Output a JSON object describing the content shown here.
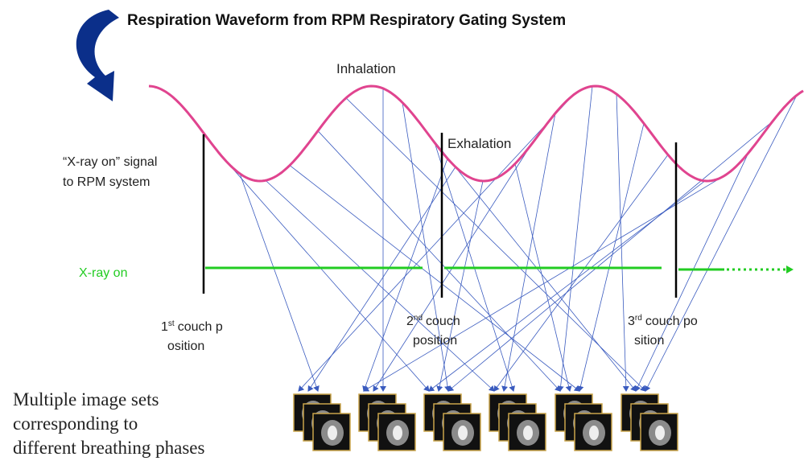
{
  "title": "Respiration Waveform from RPM Respiratory Gating System",
  "labels": {
    "inhalation": "Inhalation",
    "exhalation": "Exhalation",
    "signal": [
      "“X-ray on” signal",
      "to RPM system"
    ],
    "xray_on": "X-ray on",
    "couch_positions": [
      {
        "number": "1",
        "sup": "st",
        "line1": "couch p",
        "line2": "osition"
      },
      {
        "number": "2",
        "sup": "nd",
        "line1": "couch",
        "line2": "position"
      },
      {
        "number": "3",
        "sup": "rd",
        "line1": "couch po",
        "line2": "sition"
      }
    ],
    "image_sets": [
      "Multiple image sets",
      "corresponding to",
      "different breathing phases"
    ]
  }
}
